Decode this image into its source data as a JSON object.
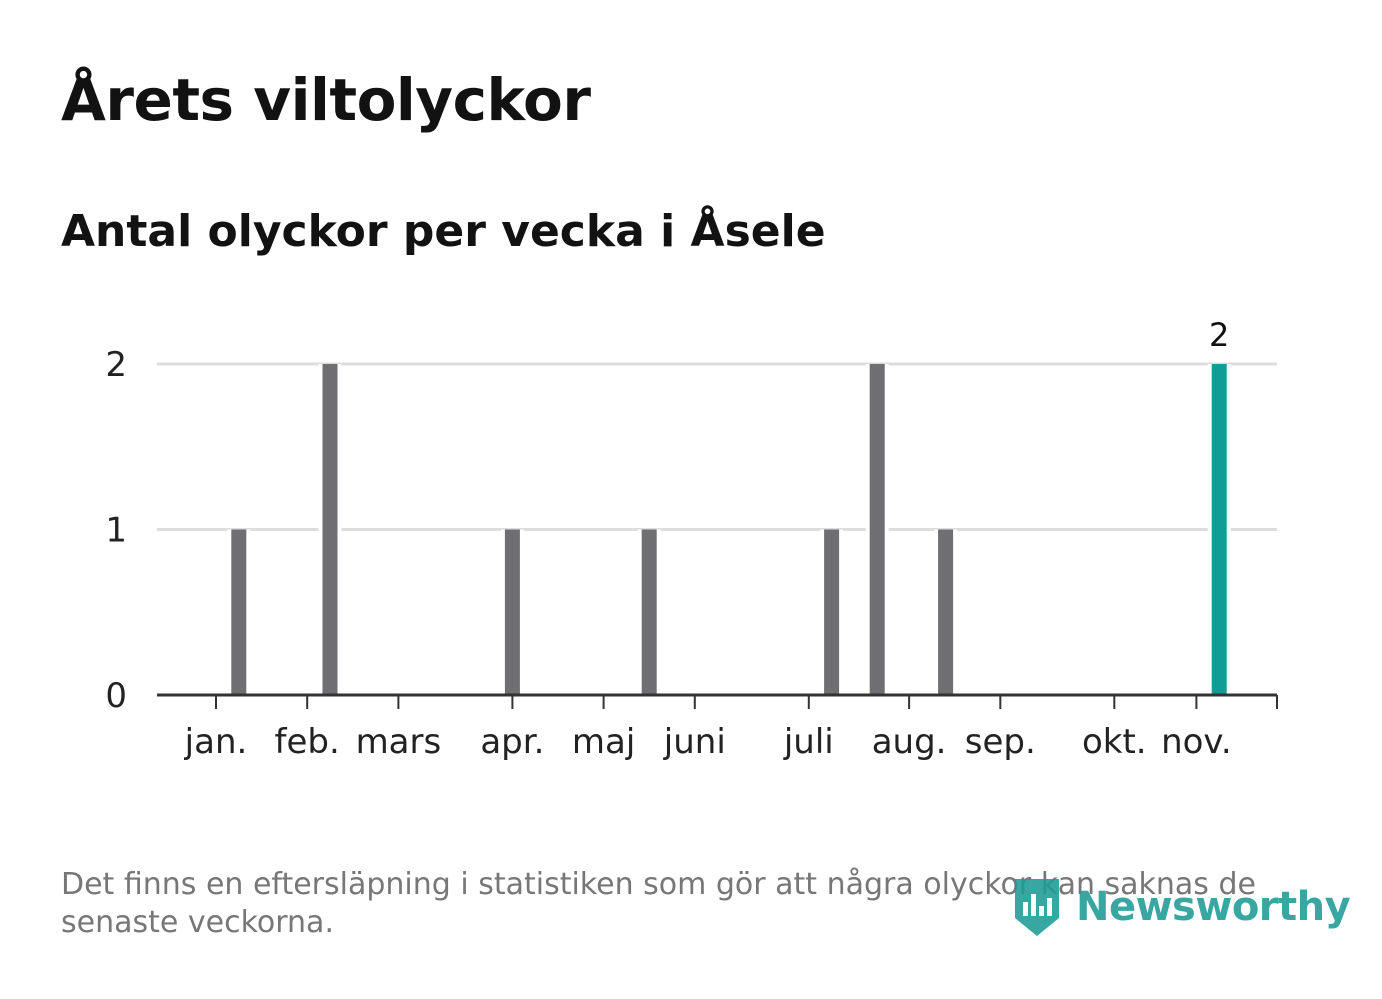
{
  "title": "Årets viltolyckor",
  "subtitle": "Antal olyckor per vecka i Åsele",
  "note": "Det finns en eftersläpning i statistiken som gör att några olyckor kan saknas de senaste veckorna.",
  "brand": {
    "name": "Newsworthy",
    "color": "#1d9c95"
  },
  "colors": {
    "bar": "#6e6e73",
    "highlight": "#0e9e96",
    "grid": "#dddddd",
    "axis": "#333333"
  },
  "chart_data": {
    "type": "bar",
    "title": "Årets viltolyckor",
    "subtitle": "Antal olyckor per vecka i Åsele",
    "xlabel": "",
    "ylabel": "",
    "ylim": [
      0,
      2
    ],
    "yticks": [
      0,
      1,
      2
    ],
    "week_range": [
      1,
      48
    ],
    "weeks": [
      2,
      6,
      14,
      20,
      28,
      30,
      33,
      45
    ],
    "values": [
      1,
      2,
      1,
      1,
      1,
      2,
      1,
      2
    ],
    "highlight_week": 45,
    "highlight_label": "2",
    "month_ticks": [
      {
        "label": "jan.",
        "week": 1.0
      },
      {
        "label": "feb.",
        "week": 5.0
      },
      {
        "label": "mars",
        "week": 9.0
      },
      {
        "label": "apr.",
        "week": 14.0
      },
      {
        "label": "maj",
        "week": 18.0
      },
      {
        "label": "juni",
        "week": 22.0
      },
      {
        "label": "juli",
        "week": 27.0
      },
      {
        "label": "aug.",
        "week": 31.4
      },
      {
        "label": "sep.",
        "week": 35.4
      },
      {
        "label": "okt.",
        "week": 40.4
      },
      {
        "label": "nov.",
        "week": 44.0
      }
    ]
  }
}
